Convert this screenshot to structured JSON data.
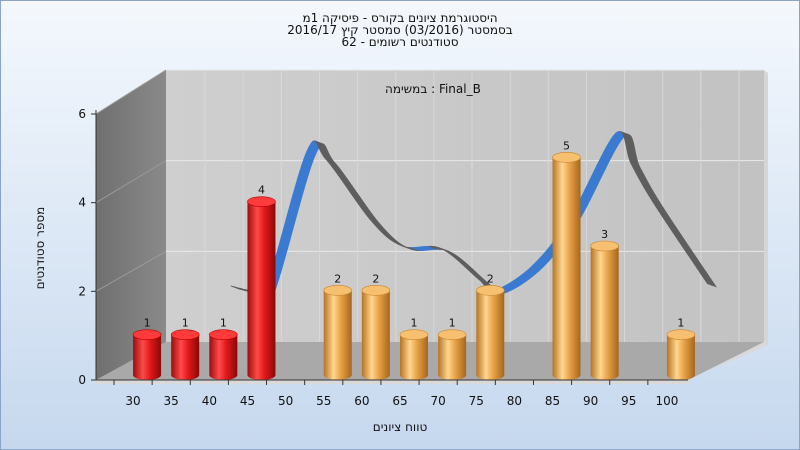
{
  "header": {
    "title_lines": [
      "היסטוגרמת ציונים בקורס - פיסיקה 1מ",
      "בסמסטר  (03/2016)  סמסטר קיץ 2016/17",
      "סטודנטים רשומים - 62"
    ]
  },
  "chart_data": {
    "type": "bar",
    "subtitle": "במשימה : Final_B",
    "xlabel": "טווח ציונים",
    "ylabel": "מספר סטודנטים",
    "categories": [
      "30",
      "35",
      "40",
      "45",
      "50",
      "55",
      "60",
      "65",
      "70",
      "75",
      "80",
      "85",
      "90",
      "95",
      "100"
    ],
    "values": [
      1,
      1,
      1,
      4,
      null,
      2,
      2,
      1,
      1,
      2,
      null,
      5,
      3,
      null,
      1
    ],
    "bar_colors": [
      "#e01818",
      "#e01818",
      "#e01818",
      "#e01818",
      null,
      "#e8a040",
      "#e8a040",
      "#e8a040",
      "#e8a040",
      "#e8a040",
      null,
      "#e8a040",
      "#e8a040",
      null,
      "#e8a040"
    ],
    "yticks": [
      0,
      2,
      4,
      6
    ],
    "ylim": [
      0,
      6
    ],
    "grid": true,
    "curve": {
      "type": "smoothed-ribbon",
      "colors": {
        "front": "#3a7ad0",
        "back": "#5e5e5e"
      },
      "points": [
        {
          "x": 37.5,
          "y": 1.65
        },
        {
          "x": 40,
          "y": 1.55
        },
        {
          "x": 42,
          "y": 1.55
        },
        {
          "x": 47.5,
          "y": 4.7
        },
        {
          "x": 50,
          "y": 4.5
        },
        {
          "x": 56,
          "y": 3.1
        },
        {
          "x": 60,
          "y": 2.55
        },
        {
          "x": 65,
          "y": 2.5
        },
        {
          "x": 70,
          "y": 1.8
        },
        {
          "x": 72,
          "y": 1.55
        },
        {
          "x": 77,
          "y": 2.1
        },
        {
          "x": 82,
          "y": 3.2
        },
        {
          "x": 88,
          "y": 5.1
        },
        {
          "x": 90,
          "y": 4.4
        },
        {
          "x": 93,
          "y": 3.5
        },
        {
          "x": 100,
          "y": 1.7
        }
      ]
    },
    "colors": {
      "red": "#e01818",
      "orange": "#e8a040",
      "back_wall": "#c9c9c9",
      "side_wall": "#7d7d7d",
      "floor": "#a9a9a9"
    }
  }
}
